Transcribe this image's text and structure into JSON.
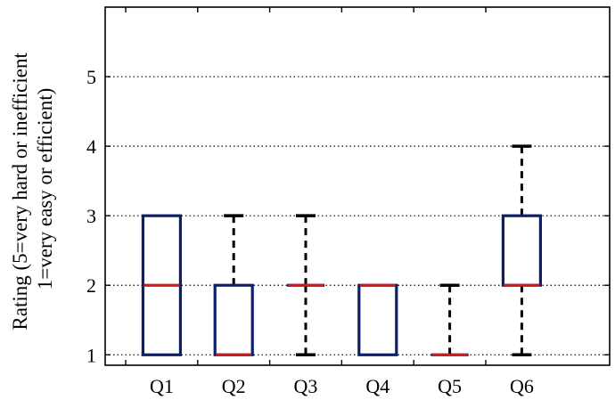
{
  "chart_data": {
    "type": "boxplot",
    "ylabel_line1": "Rating (5=very hard or inefficient",
    "ylabel_line2": "1=very easy or efficient)",
    "ylim": [
      0.85,
      6.0
    ],
    "yticks": [
      1,
      2,
      3,
      4,
      5
    ],
    "grid": "horizontal dotted",
    "categories": [
      "Q1",
      "Q2",
      "Q3",
      "Q4",
      "Q5",
      "Q6"
    ],
    "boxes": [
      {
        "category": "Q1",
        "min": 1,
        "q1": 1,
        "median": 2,
        "q3": 3,
        "max": 3
      },
      {
        "category": "Q2",
        "min": 1,
        "q1": 1,
        "median": 1,
        "q3": 2,
        "max": 3
      },
      {
        "category": "Q3",
        "min": 1,
        "q1": 2,
        "median": 2,
        "q3": 2,
        "max": 3
      },
      {
        "category": "Q4",
        "min": 1,
        "q1": 1,
        "median": 2,
        "q3": 2,
        "max": 2
      },
      {
        "category": "Q5",
        "min": 1,
        "q1": 1,
        "median": 1,
        "q3": 1,
        "max": 2
      },
      {
        "category": "Q6",
        "min": 1,
        "q1": 2,
        "median": 2,
        "q3": 3,
        "max": 4
      }
    ],
    "colors": {
      "box": "#0d1f6b",
      "median": "#d11a1a",
      "whisker": "#000000",
      "grid": "#000000"
    }
  }
}
